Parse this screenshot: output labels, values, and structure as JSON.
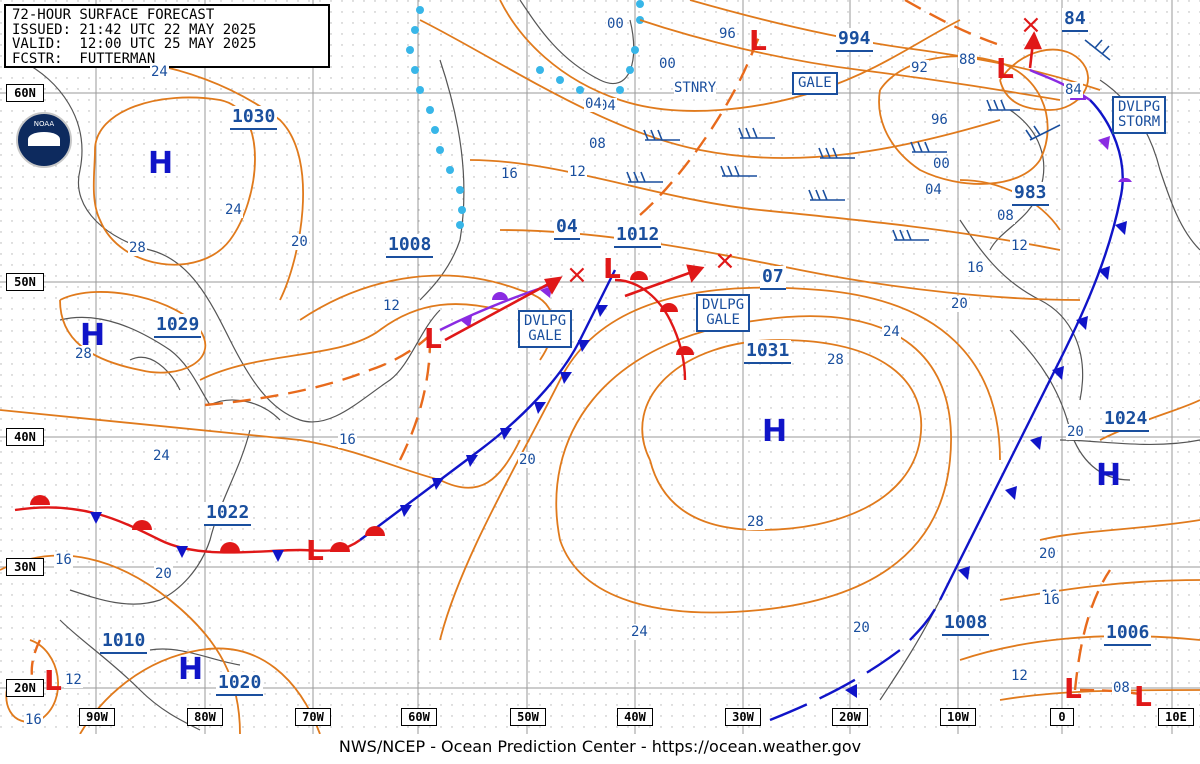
{
  "header": {
    "title": "72-HOUR SURFACE FORECAST",
    "issued": "ISSUED: 21:42 UTC 22 MAY 2025",
    "valid": "VALID:  12:00 UTC 25 MAY 2025",
    "forecaster": "FCSTR:  FUTTERMAN"
  },
  "footer": "NWS/NCEP - Ocean Prediction Center - https://ocean.weather.gov",
  "logo": {
    "icon": "noaa-logo",
    "text": "NOAA"
  },
  "latitude_labels": [
    "60N",
    "50N",
    "40N",
    "30N",
    "20N"
  ],
  "longitude_labels": [
    "90W",
    "80W",
    "70W",
    "60W",
    "50W",
    "40W",
    "30W",
    "20W",
    "10W",
    "0",
    "10E"
  ],
  "pressure_centers": [
    {
      "type": "H",
      "value": "1030"
    },
    {
      "type": "H",
      "value": "1029"
    },
    {
      "type": "H",
      "value": "1031"
    },
    {
      "type": "H",
      "value": "1024"
    },
    {
      "type": "H",
      "value": "1020"
    },
    {
      "type": "L",
      "value": "1008"
    },
    {
      "type": "L",
      "value": "1012"
    },
    {
      "type": "L",
      "value": "994"
    },
    {
      "type": "L",
      "value": "983"
    },
    {
      "type": "L",
      "value": "1022"
    },
    {
      "type": "L",
      "value": "1010"
    },
    {
      "type": "L",
      "value": "1008"
    },
    {
      "type": "L",
      "value": "1006"
    },
    {
      "type": "L",
      "value": "04"
    },
    {
      "type": "L",
      "value": "07"
    },
    {
      "type": "L",
      "value": "84"
    }
  ],
  "isobar_labels": [
    "24",
    "24",
    "28",
    "20",
    "28",
    "16",
    "12",
    "16",
    "12",
    "08",
    "04",
    "00",
    "96",
    "00",
    "04",
    "92",
    "88",
    "96",
    "00",
    "04",
    "08",
    "12",
    "16",
    "84",
    "20",
    "24",
    "28",
    "20",
    "24",
    "28",
    "20",
    "16",
    "20",
    "16",
    "12",
    "08",
    "16",
    "12",
    "16",
    "20",
    "20",
    "24"
  ],
  "warnings": [
    "GALE",
    "DVLPG\nSTORM",
    "DVLPG\nGALE",
    "DVLPG\nGALE"
  ],
  "annotations": [
    "STNRY"
  ],
  "colors": {
    "isobar": "#e07a1c",
    "warm_front": "#e01818",
    "cold_front": "#1014c8",
    "occluded": "#8a2be2",
    "ice": "#38b6e8",
    "coast": "#555555",
    "label": "#1a4f9e"
  }
}
